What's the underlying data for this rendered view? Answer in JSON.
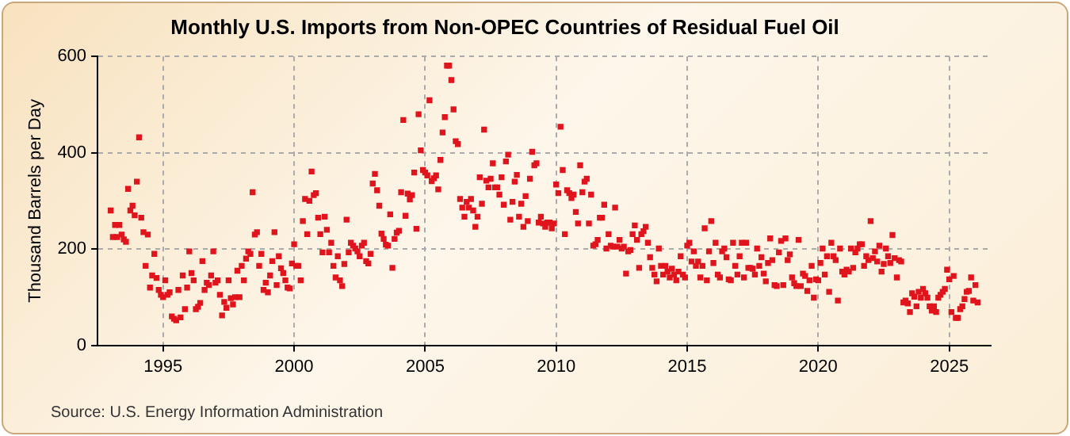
{
  "chart_data": {
    "type": "scatter",
    "title": "Monthly U.S. Imports from Non-OPEC Countries of Residual Fuel Oil",
    "ylabel": "Thousand Barrels per Day",
    "annotations": [
      "Source: U.S. Energy Information Administration"
    ],
    "x": [
      "1993-01",
      "1993-02",
      "1993-03",
      "1993-04",
      "1993-05",
      "1993-06",
      "1993-07",
      "1993-08",
      "1993-09",
      "1993-10",
      "1993-11",
      "1993-12",
      "1994-01",
      "1994-02",
      "1994-03",
      "1994-04",
      "1994-05",
      "1994-06",
      "1994-07",
      "1994-08",
      "1994-09",
      "1994-10",
      "1994-11",
      "1994-12",
      "1995-01",
      "1995-02",
      "1995-03",
      "1995-04",
      "1995-05",
      "1995-06",
      "1995-07",
      "1995-08",
      "1995-09",
      "1995-10",
      "1995-11",
      "1995-12",
      "1996-01",
      "1996-02",
      "1996-03",
      "1996-04",
      "1996-05",
      "1996-06",
      "1996-07",
      "1996-08",
      "1996-09",
      "1996-10",
      "1996-11",
      "1996-12",
      "1997-01",
      "1997-02",
      "1997-03",
      "1997-04",
      "1997-05",
      "1997-06",
      "1997-07",
      "1997-08",
      "1997-09",
      "1997-10",
      "1997-11",
      "1997-12",
      "1998-01",
      "1998-02",
      "1998-03",
      "1998-04",
      "1998-05",
      "1998-06",
      "1998-07",
      "1998-08",
      "1998-09",
      "1998-10",
      "1998-11",
      "1998-12",
      "1999-01",
      "1999-02",
      "1999-03",
      "1999-04",
      "1999-05",
      "1999-06",
      "1999-07",
      "1999-08",
      "1999-09",
      "1999-10",
      "1999-11",
      "1999-12",
      "2000-01",
      "2000-02",
      "2000-03",
      "2000-04",
      "2000-05",
      "2000-06",
      "2000-07",
      "2000-08",
      "2000-09",
      "2000-10",
      "2000-11",
      "2000-12",
      "2001-01",
      "2001-02",
      "2001-03",
      "2001-04",
      "2001-05",
      "2001-06",
      "2001-07",
      "2001-08",
      "2001-09",
      "2001-10",
      "2001-11",
      "2001-12",
      "2002-01",
      "2002-02",
      "2002-03",
      "2002-04",
      "2002-05",
      "2002-06",
      "2002-07",
      "2002-08",
      "2002-09",
      "2002-10",
      "2002-11",
      "2002-12",
      "2003-01",
      "2003-02",
      "2003-03",
      "2003-04",
      "2003-05",
      "2003-06",
      "2003-07",
      "2003-08",
      "2003-09",
      "2003-10",
      "2003-11",
      "2003-12",
      "2004-01",
      "2004-02",
      "2004-03",
      "2004-04",
      "2004-05",
      "2004-06",
      "2004-07",
      "2004-08",
      "2004-09",
      "2004-10",
      "2004-11",
      "2004-12",
      "2005-01",
      "2005-02",
      "2005-03",
      "2005-04",
      "2005-05",
      "2005-06",
      "2005-07",
      "2005-08",
      "2005-09",
      "2005-10",
      "2005-11",
      "2005-12",
      "2006-01",
      "2006-02",
      "2006-03",
      "2006-04",
      "2006-05",
      "2006-06",
      "2006-07",
      "2006-08",
      "2006-09",
      "2006-10",
      "2006-11",
      "2006-12",
      "2007-01",
      "2007-02",
      "2007-03",
      "2007-04",
      "2007-05",
      "2007-06",
      "2007-07",
      "2007-08",
      "2007-09",
      "2007-10",
      "2007-11",
      "2007-12",
      "2008-01",
      "2008-02",
      "2008-03",
      "2008-04",
      "2008-05",
      "2008-06",
      "2008-07",
      "2008-08",
      "2008-09",
      "2008-10",
      "2008-11",
      "2008-12",
      "2009-01",
      "2009-02",
      "2009-03",
      "2009-04",
      "2009-05",
      "2009-06",
      "2009-07",
      "2009-08",
      "2009-09",
      "2009-10",
      "2009-11",
      "2009-12",
      "2010-01",
      "2010-02",
      "2010-03",
      "2010-04",
      "2010-05",
      "2010-06",
      "2010-07",
      "2010-08",
      "2010-09",
      "2010-10",
      "2010-11",
      "2010-12",
      "2011-01",
      "2011-02",
      "2011-03",
      "2011-04",
      "2011-05",
      "2011-06",
      "2011-07",
      "2011-08",
      "2011-09",
      "2011-10",
      "2011-11",
      "2011-12",
      "2012-01",
      "2012-02",
      "2012-03",
      "2012-04",
      "2012-05",
      "2012-06",
      "2012-07",
      "2012-08",
      "2012-09",
      "2012-10",
      "2012-11",
      "2012-12",
      "2013-01",
      "2013-02",
      "2013-03",
      "2013-04",
      "2013-05",
      "2013-06",
      "2013-07",
      "2013-08",
      "2013-09",
      "2013-10",
      "2013-11",
      "2013-12",
      "2014-01",
      "2014-02",
      "2014-03",
      "2014-04",
      "2014-05",
      "2014-06",
      "2014-07",
      "2014-08",
      "2014-09",
      "2014-10",
      "2014-11",
      "2014-12",
      "2015-01",
      "2015-02",
      "2015-03",
      "2015-04",
      "2015-05",
      "2015-06",
      "2015-07",
      "2015-08",
      "2015-09",
      "2015-10",
      "2015-11",
      "2015-12",
      "2016-01",
      "2016-02",
      "2016-03",
      "2016-04",
      "2016-05",
      "2016-06",
      "2016-07",
      "2016-08",
      "2016-09",
      "2016-10",
      "2016-11",
      "2016-12",
      "2017-01",
      "2017-02",
      "2017-03",
      "2017-04",
      "2017-05",
      "2017-06",
      "2017-07",
      "2017-08",
      "2017-09",
      "2017-10",
      "2017-11",
      "2017-12",
      "2018-01",
      "2018-02",
      "2018-03",
      "2018-04",
      "2018-05",
      "2018-06",
      "2018-07",
      "2018-08",
      "2018-09",
      "2018-10",
      "2018-11",
      "2018-12",
      "2019-01",
      "2019-02",
      "2019-03",
      "2019-04",
      "2019-05",
      "2019-06",
      "2019-07",
      "2019-08",
      "2019-09",
      "2019-10",
      "2019-11",
      "2019-12",
      "2020-01",
      "2020-02",
      "2020-03",
      "2020-04",
      "2020-05",
      "2020-06",
      "2020-07",
      "2020-08",
      "2020-09",
      "2020-10",
      "2020-11",
      "2020-12",
      "2021-01",
      "2021-02",
      "2021-03",
      "2021-04",
      "2021-05",
      "2021-06",
      "2021-07",
      "2021-08",
      "2021-09",
      "2021-10",
      "2021-11",
      "2021-12",
      "2022-01",
      "2022-02",
      "2022-03",
      "2022-04",
      "2022-05",
      "2022-06",
      "2022-07",
      "2022-08",
      "2022-09",
      "2022-10",
      "2022-11",
      "2022-12",
      "2023-01",
      "2023-02",
      "2023-03",
      "2023-04",
      "2023-05",
      "2023-06",
      "2023-07",
      "2023-08",
      "2023-09",
      "2023-10",
      "2023-11",
      "2023-12",
      "2024-01",
      "2024-02",
      "2024-03",
      "2024-04",
      "2024-05",
      "2024-06",
      "2024-07",
      "2024-08",
      "2024-09",
      "2024-10",
      "2024-11",
      "2024-12",
      "2025-01",
      "2025-02",
      "2025-03",
      "2025-04",
      "2025-05",
      "2025-06",
      "2025-07",
      "2025-08",
      "2025-09",
      "2025-10",
      "2025-11",
      "2025-12",
      "2026-01",
      "2026-02"
    ],
    "series": [
      {
        "color": "#e0141c",
        "values": [
          280,
          225,
          250,
          225,
          250,
          230,
          220,
          215,
          325,
          280,
          290,
          270,
          340,
          432,
          265,
          235,
          165,
          230,
          120,
          145,
          190,
          140,
          115,
          105,
          100,
          135,
          105,
          110,
          60,
          55,
          52,
          115,
          58,
          145,
          75,
          120,
          195,
          150,
          135,
          75,
          80,
          88,
          175,
          115,
          130,
          125,
          145,
          195,
          130,
          135,
          105,
          62,
          90,
          78,
          135,
          98,
          85,
          100,
          155,
          100,
          165,
          135,
          180,
          195,
          190,
          318,
          230,
          235,
          165,
          190,
          115,
          130,
          110,
          145,
          175,
          235,
          125,
          185,
          160,
          150,
          135,
          120,
          118,
          170,
          210,
          165,
          165,
          135,
          258,
          304,
          231,
          300,
          361,
          312,
          316,
          265,
          231,
          193,
          267,
          240,
          193,
          213,
          165,
          141,
          185,
          135,
          123,
          169,
          261,
          193,
          213,
          207,
          201,
          195,
          185,
          207,
          213,
          175,
          170,
          190,
          336,
          356,
          322,
          290,
          232,
          221,
          209,
          207,
          272,
          161,
          221,
          234,
          238,
          318,
          468,
          269,
          315,
          303,
          312,
          359,
          242,
          480,
          405,
          364,
          359,
          353,
          509,
          341,
          347,
          353,
          324,
          385,
          442,
          474,
          581,
          581,
          551,
          490,
          424,
          418,
          304,
          286,
          267,
          298,
          286,
          304,
          280,
          246,
          267,
          349,
          294,
          448,
          342,
          328,
          346,
          378,
          328,
          328,
          313,
          349,
          292,
          382,
          396,
          261,
          298,
          340,
          354,
          267,
          294,
          246,
          310,
          258,
          346,
          402,
          374,
          378,
          255,
          267,
          253,
          246,
          255,
          255,
          243,
          253,
          334,
          316,
          454,
          364,
          231,
          322,
          316,
          306,
          313,
          277,
          253,
          374,
          318,
          340,
          346,
          253,
          313,
          207,
          210,
          219,
          265,
          265,
          292,
          201,
          231,
          207,
          205,
          286,
          205,
          219,
          201,
          205,
          149,
          195,
          198,
          231,
          249,
          219,
          161,
          231,
          237,
          246,
          213,
          183,
          161,
          147,
          133,
          201,
          165,
          147,
          165,
          153,
          141,
          159,
          147,
          135,
          153,
          185,
          147,
          141,
          207,
          213,
          174,
          195,
          165,
          174,
          141,
          165,
          243,
          135,
          195,
          258,
          171,
          213,
          147,
          141,
          195,
          201,
          183,
          137,
          135,
          213,
          165,
          147,
          185,
          213,
          141,
          213,
          161,
          161,
          159,
          147,
          201,
          165,
          183,
          149,
          133,
          171,
          222,
          177,
          125,
          123,
          193,
          217,
          125,
          222,
          177,
          189,
          141,
          129,
          123,
          219,
          123,
          149,
          144,
          113,
          135,
          165,
          99,
          137,
          135,
          171,
          201,
          147,
          185,
          111,
          213,
          185,
          177,
          93,
          201,
          153,
          147,
          157,
          153,
          201,
          161,
          193,
          201,
          210,
          210,
          165,
          185,
          177,
          258,
          181,
          195,
          174,
          207,
          153,
          169,
          201,
          185,
          171,
          229,
          181,
          141,
          177,
          174,
          89,
          93,
          87,
          69,
          108,
          101,
          81,
          111,
          99,
          117,
          108,
          99,
          81,
          72,
          81,
          69,
          99,
          105,
          111,
          117,
          157,
          137,
          69,
          144,
          57,
          57,
          75,
          81,
          96,
          111,
          113,
          141,
          93,
          125,
          89
        ]
      }
    ],
    "xlim": [
      "1992-07",
      "2026-08"
    ],
    "xticks": [
      "1995",
      "2000",
      "2005",
      "2010",
      "2015",
      "2020",
      "2025"
    ],
    "ylim": [
      0,
      600
    ],
    "yticks": [
      0,
      200,
      400,
      600
    ],
    "grid": true,
    "marker": "square",
    "legend": false
  }
}
